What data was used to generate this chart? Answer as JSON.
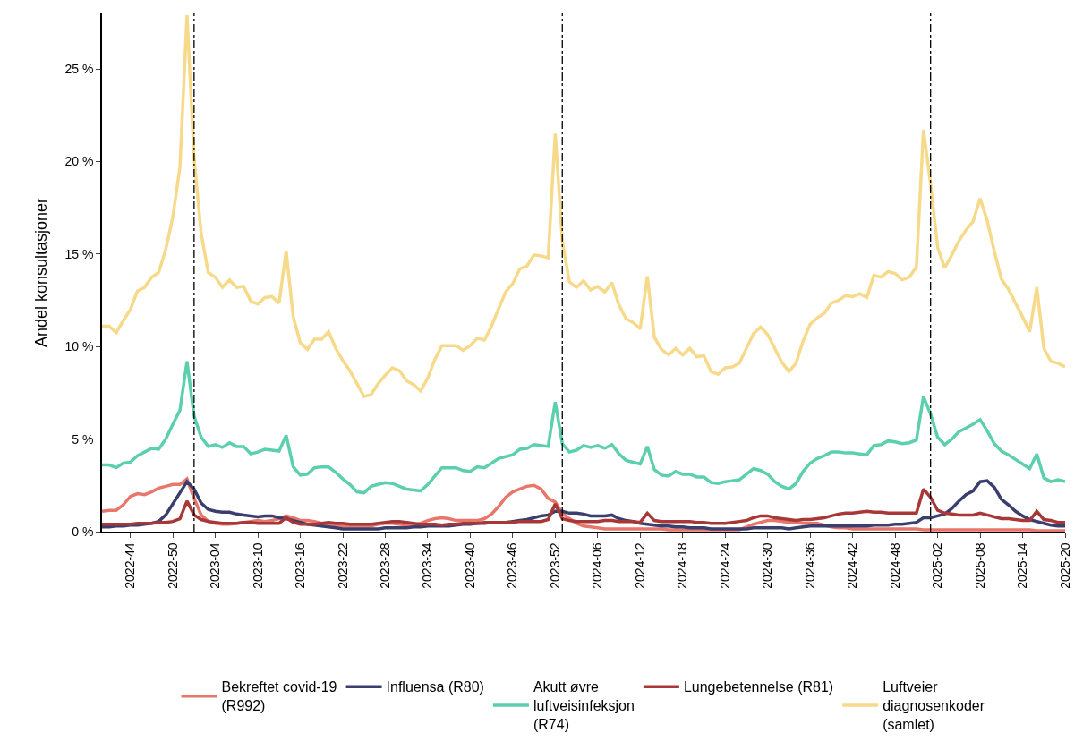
{
  "chart_data": {
    "type": "line",
    "ylabel": "Andel konsultasjoner",
    "x": [
      "2022-10-03",
      "2022-10-10",
      "2022-10-17",
      "2022-10-24",
      "2022-10-31",
      "2022-11-07",
      "2022-11-14",
      "2022-11-21",
      "2022-11-28",
      "2022-12-05",
      "2022-12-12",
      "2022-12-19",
      "2022-12-26",
      "2023-01-02",
      "2023-01-09",
      "2023-01-16",
      "2023-01-23",
      "2023-01-30",
      "2023-02-06",
      "2023-02-13",
      "2023-02-20",
      "2023-02-27",
      "2023-03-06",
      "2023-03-13",
      "2023-03-20",
      "2023-03-27",
      "2023-04-03",
      "2023-04-10",
      "2023-04-17",
      "2023-04-24",
      "2023-05-01",
      "2023-05-08",
      "2023-05-15",
      "2023-05-22",
      "2023-05-29",
      "2023-06-05",
      "2023-06-12",
      "2023-06-19",
      "2023-06-26",
      "2023-07-03",
      "2023-07-10",
      "2023-07-17",
      "2023-07-24",
      "2023-07-31",
      "2023-08-07",
      "2023-08-14",
      "2023-08-21",
      "2023-08-28",
      "2023-09-04",
      "2023-09-11",
      "2023-09-18",
      "2023-09-25",
      "2023-10-02",
      "2023-10-09",
      "2023-10-16",
      "2023-10-23",
      "2023-10-30",
      "2023-11-06",
      "2023-11-13",
      "2023-11-20",
      "2023-11-27",
      "2023-12-04",
      "2023-12-11",
      "2023-12-18",
      "2023-12-25",
      "2024-01-01",
      "2024-01-08",
      "2024-01-15",
      "2024-01-22",
      "2024-01-29",
      "2024-02-05",
      "2024-02-12",
      "2024-02-19",
      "2024-02-26",
      "2024-03-04",
      "2024-03-11",
      "2024-03-18",
      "2024-03-25",
      "2024-04-01",
      "2024-04-08",
      "2024-04-15",
      "2024-04-22",
      "2024-04-29",
      "2024-05-06",
      "2024-05-13",
      "2024-05-20",
      "2024-05-27",
      "2024-06-03",
      "2024-06-10",
      "2024-06-17",
      "2024-06-24",
      "2024-07-01",
      "2024-07-08",
      "2024-07-15",
      "2024-07-22",
      "2024-07-29",
      "2024-08-05",
      "2024-08-12",
      "2024-08-19",
      "2024-08-26",
      "2024-09-02",
      "2024-09-09",
      "2024-09-16",
      "2024-09-23",
      "2024-09-30",
      "2024-10-07",
      "2024-10-14",
      "2024-10-21",
      "2024-10-28",
      "2024-11-04",
      "2024-11-11",
      "2024-11-18",
      "2024-11-25",
      "2024-12-02",
      "2024-12-09",
      "2024-12-16",
      "2024-12-23",
      "2024-12-30",
      "2025-01-06",
      "2025-01-13",
      "2025-01-20",
      "2025-01-27",
      "2025-02-03",
      "2025-02-10",
      "2025-02-17",
      "2025-02-24",
      "2025-03-03",
      "2025-03-10",
      "2025-03-17",
      "2025-03-24",
      "2025-03-31",
      "2025-04-07",
      "2025-04-14",
      "2025-04-21",
      "2025-04-28",
      "2025-05-05",
      "2025-05-12"
    ],
    "xlim": [
      "2022-10-03",
      "2025-05-12"
    ],
    "xticks": [
      {
        "value": "2022-10-31",
        "label": "2022-44"
      },
      {
        "value": "2022-12-12",
        "label": "2022-50"
      },
      {
        "value": "2023-01-23",
        "label": "2023-04"
      },
      {
        "value": "2023-03-06",
        "label": "2023-10"
      },
      {
        "value": "2023-04-17",
        "label": "2023-16"
      },
      {
        "value": "2023-05-29",
        "label": "2023-22"
      },
      {
        "value": "2023-07-10",
        "label": "2023-28"
      },
      {
        "value": "2023-08-21",
        "label": "2023-34"
      },
      {
        "value": "2023-10-02",
        "label": "2023-40"
      },
      {
        "value": "2023-11-13",
        "label": "2023-46"
      },
      {
        "value": "2023-12-25",
        "label": "2023-52"
      },
      {
        "value": "2024-02-05",
        "label": "2024-06"
      },
      {
        "value": "2024-03-18",
        "label": "2024-12"
      },
      {
        "value": "2024-04-29",
        "label": "2024-18"
      },
      {
        "value": "2024-06-10",
        "label": "2024-24"
      },
      {
        "value": "2024-07-22",
        "label": "2024-30"
      },
      {
        "value": "2024-09-02",
        "label": "2024-36"
      },
      {
        "value": "2024-10-14",
        "label": "2024-42"
      },
      {
        "value": "2024-11-25",
        "label": "2024-48"
      },
      {
        "value": "2025-01-06",
        "label": "2025-02"
      },
      {
        "value": "2025-02-17",
        "label": "2025-08"
      },
      {
        "value": "2025-03-31",
        "label": "2025-14"
      },
      {
        "value": "2025-05-12",
        "label": "2025-20"
      }
    ],
    "ylim": [
      0,
      28
    ],
    "yticks": [
      {
        "value": 0,
        "label": "0 %"
      },
      {
        "value": 5,
        "label": "5 %"
      },
      {
        "value": 10,
        "label": "10 %"
      },
      {
        "value": 15,
        "label": "15 %"
      },
      {
        "value": 20,
        "label": "20 %"
      },
      {
        "value": 25,
        "label": "25 %"
      }
    ],
    "legend": "bottom",
    "line_style": "solid",
    "ref_lines": [
      {
        "axis": "x",
        "value": "2023-01-02",
        "color": "#000000",
        "line_style": "dashdot"
      },
      {
        "axis": "x",
        "value": "2024-01-01",
        "color": "#000000",
        "line_style": "dashdot"
      },
      {
        "axis": "x",
        "value": "2024-12-30",
        "color": "#000000",
        "line_style": "dashdot"
      }
    ],
    "series": [
      {
        "name": "Bekreftet covid-19 (R992)",
        "color": "#e8776b",
        "values": [
          1.1,
          1.15,
          1.15,
          1.45,
          1.9,
          2.05,
          2.0,
          2.15,
          2.35,
          2.45,
          2.55,
          2.55,
          2.85,
          1.8,
          0.9,
          0.55,
          0.45,
          0.4,
          0.4,
          0.45,
          0.5,
          0.55,
          0.6,
          0.55,
          0.6,
          0.7,
          0.85,
          0.75,
          0.6,
          0.6,
          0.55,
          0.45,
          0.4,
          0.35,
          0.3,
          0.3,
          0.3,
          0.3,
          0.3,
          0.4,
          0.45,
          0.45,
          0.4,
          0.35,
          0.35,
          0.45,
          0.6,
          0.7,
          0.75,
          0.7,
          0.6,
          0.6,
          0.6,
          0.6,
          0.7,
          0.95,
          1.35,
          1.85,
          2.15,
          2.3,
          2.45,
          2.5,
          2.3,
          1.8,
          1.6,
          1.0,
          0.7,
          0.45,
          0.3,
          0.25,
          0.2,
          0.15,
          0.15,
          0.15,
          0.15,
          0.15,
          0.15,
          0.15,
          0.15,
          0.15,
          0.1,
          0.1,
          0.1,
          0.1,
          0.1,
          0.1,
          0.1,
          0.1,
          0.1,
          0.1,
          0.1,
          0.25,
          0.4,
          0.5,
          0.6,
          0.6,
          0.55,
          0.5,
          0.5,
          0.45,
          0.45,
          0.45,
          0.35,
          0.25,
          0.2,
          0.2,
          0.15,
          0.15,
          0.15,
          0.15,
          0.15,
          0.15,
          0.15,
          0.15,
          0.15,
          0.15,
          0.1,
          0.1,
          0.1,
          0.1,
          0.1,
          0.1,
          0.1,
          0.1,
          0.1,
          0.1,
          0.1,
          0.1,
          0.1,
          0.1,
          0.1,
          0.1,
          0.05,
          0.05,
          0.05,
          0.05,
          0.05
        ]
      },
      {
        "name": "Influensa (R80)",
        "color": "#3b3f6e",
        "values": [
          0.25,
          0.25,
          0.3,
          0.3,
          0.35,
          0.35,
          0.4,
          0.45,
          0.55,
          0.9,
          1.5,
          2.1,
          2.7,
          2.3,
          1.55,
          1.2,
          1.1,
          1.05,
          1.05,
          0.95,
          0.9,
          0.85,
          0.8,
          0.85,
          0.85,
          0.75,
          0.7,
          0.6,
          0.5,
          0.4,
          0.35,
          0.3,
          0.25,
          0.2,
          0.15,
          0.15,
          0.15,
          0.15,
          0.15,
          0.15,
          0.2,
          0.2,
          0.2,
          0.2,
          0.25,
          0.25,
          0.3,
          0.3,
          0.3,
          0.3,
          0.35,
          0.4,
          0.4,
          0.45,
          0.45,
          0.5,
          0.5,
          0.5,
          0.55,
          0.6,
          0.65,
          0.75,
          0.85,
          0.9,
          1.1,
          1.1,
          1.0,
          1.0,
          0.95,
          0.85,
          0.85,
          0.85,
          0.9,
          0.7,
          0.6,
          0.55,
          0.45,
          0.4,
          0.35,
          0.3,
          0.3,
          0.25,
          0.25,
          0.2,
          0.2,
          0.2,
          0.15,
          0.15,
          0.15,
          0.15,
          0.15,
          0.15,
          0.2,
          0.2,
          0.2,
          0.2,
          0.2,
          0.15,
          0.2,
          0.25,
          0.3,
          0.3,
          0.3,
          0.3,
          0.3,
          0.3,
          0.3,
          0.3,
          0.3,
          0.35,
          0.35,
          0.35,
          0.4,
          0.4,
          0.45,
          0.5,
          0.75,
          0.75,
          0.85,
          0.95,
          1.25,
          1.65,
          2.0,
          2.2,
          2.7,
          2.75,
          2.4,
          1.75,
          1.45,
          1.1,
          0.85,
          0.65,
          0.55,
          0.45,
          0.35,
          0.3,
          0.3
        ]
      },
      {
        "name": "Akutt øvre luftveisinfeksjon (R74)",
        "color": "#5ccfae",
        "values": [
          3.6,
          3.6,
          3.45,
          3.7,
          3.75,
          4.1,
          4.3,
          4.5,
          4.45,
          5.0,
          5.8,
          6.55,
          9.2,
          6.25,
          5.1,
          4.6,
          4.7,
          4.55,
          4.8,
          4.6,
          4.6,
          4.2,
          4.3,
          4.45,
          4.4,
          4.35,
          5.2,
          3.5,
          3.05,
          3.1,
          3.45,
          3.5,
          3.5,
          3.2,
          2.85,
          2.55,
          2.15,
          2.1,
          2.45,
          2.55,
          2.65,
          2.6,
          2.45,
          2.3,
          2.25,
          2.2,
          2.55,
          3.0,
          3.45,
          3.45,
          3.45,
          3.3,
          3.25,
          3.5,
          3.45,
          3.7,
          3.95,
          4.05,
          4.15,
          4.45,
          4.5,
          4.7,
          4.65,
          4.6,
          7.0,
          4.75,
          4.3,
          4.4,
          4.65,
          4.55,
          4.65,
          4.5,
          4.7,
          4.2,
          3.85,
          3.75,
          3.65,
          4.6,
          3.35,
          3.05,
          3.0,
          3.25,
          3.1,
          3.1,
          2.95,
          2.95,
          2.65,
          2.6,
          2.7,
          2.75,
          2.8,
          3.1,
          3.4,
          3.3,
          3.1,
          2.7,
          2.45,
          2.3,
          2.6,
          3.25,
          3.7,
          3.95,
          4.1,
          4.3,
          4.3,
          4.25,
          4.25,
          4.2,
          4.15,
          4.65,
          4.7,
          4.9,
          4.85,
          4.75,
          4.8,
          4.95,
          7.3,
          6.35,
          5.1,
          4.7,
          5.0,
          5.4,
          5.6,
          5.8,
          6.05,
          5.45,
          4.75,
          4.35,
          4.15,
          3.9,
          3.65,
          3.4,
          4.2,
          2.9,
          2.7,
          2.8,
          2.7
        ]
      },
      {
        "name": "Lungebetennelse (R81)",
        "color": "#a83838",
        "values": [
          0.4,
          0.4,
          0.4,
          0.4,
          0.4,
          0.45,
          0.45,
          0.45,
          0.5,
          0.5,
          0.55,
          0.7,
          1.65,
          0.9,
          0.65,
          0.55,
          0.5,
          0.45,
          0.45,
          0.45,
          0.5,
          0.5,
          0.45,
          0.45,
          0.45,
          0.45,
          0.75,
          0.5,
          0.4,
          0.4,
          0.4,
          0.45,
          0.5,
          0.45,
          0.45,
          0.4,
          0.4,
          0.4,
          0.4,
          0.45,
          0.5,
          0.55,
          0.55,
          0.5,
          0.45,
          0.4,
          0.4,
          0.4,
          0.35,
          0.4,
          0.4,
          0.45,
          0.45,
          0.45,
          0.5,
          0.5,
          0.5,
          0.5,
          0.5,
          0.55,
          0.55,
          0.55,
          0.55,
          0.65,
          1.5,
          0.7,
          0.6,
          0.55,
          0.55,
          0.55,
          0.55,
          0.6,
          0.6,
          0.55,
          0.55,
          0.55,
          0.5,
          1.0,
          0.6,
          0.55,
          0.55,
          0.55,
          0.55,
          0.55,
          0.5,
          0.5,
          0.45,
          0.45,
          0.45,
          0.5,
          0.55,
          0.6,
          0.75,
          0.85,
          0.85,
          0.75,
          0.7,
          0.65,
          0.6,
          0.65,
          0.65,
          0.7,
          0.75,
          0.85,
          0.95,
          1.0,
          1.0,
          1.05,
          1.1,
          1.05,
          1.05,
          1.0,
          1.0,
          1.0,
          1.0,
          1.0,
          2.3,
          1.85,
          1.15,
          1.0,
          0.95,
          0.9,
          0.9,
          0.9,
          1.0,
          0.9,
          0.8,
          0.7,
          0.7,
          0.65,
          0.6,
          0.6,
          1.1,
          0.65,
          0.6,
          0.5,
          0.5
        ]
      },
      {
        "name": "Luftveier diagnosenkoder (samlet)",
        "color": "#f7d98a",
        "values": [
          11.1,
          11.1,
          10.75,
          11.4,
          12.0,
          13.0,
          13.2,
          13.75,
          14.0,
          15.25,
          17.0,
          19.7,
          27.9,
          20.2,
          16.1,
          14.0,
          13.75,
          13.2,
          13.6,
          13.2,
          13.25,
          12.45,
          12.3,
          12.65,
          12.7,
          12.35,
          15.15,
          11.6,
          10.2,
          9.85,
          10.4,
          10.4,
          10.8,
          9.9,
          9.25,
          8.7,
          8.0,
          7.3,
          7.4,
          8.0,
          8.45,
          8.85,
          8.7,
          8.15,
          7.95,
          7.6,
          8.3,
          9.3,
          10.05,
          10.05,
          10.05,
          9.8,
          10.05,
          10.45,
          10.35,
          11.1,
          12.05,
          12.95,
          13.4,
          14.2,
          14.35,
          14.95,
          14.9,
          14.8,
          21.5,
          15.7,
          13.5,
          13.2,
          13.55,
          13.05,
          13.25,
          12.95,
          13.45,
          12.25,
          11.5,
          11.3,
          10.95,
          13.8,
          10.5,
          9.85,
          9.55,
          9.9,
          9.55,
          9.9,
          9.45,
          9.5,
          8.65,
          8.5,
          8.85,
          8.9,
          9.1,
          9.9,
          10.7,
          11.05,
          10.65,
          9.9,
          9.15,
          8.65,
          9.1,
          10.3,
          11.2,
          11.55,
          11.8,
          12.35,
          12.5,
          12.75,
          12.7,
          12.85,
          12.65,
          13.85,
          13.75,
          14.05,
          13.95,
          13.6,
          13.75,
          14.3,
          21.7,
          18.8,
          15.35,
          14.25,
          14.95,
          15.7,
          16.3,
          16.75,
          18.0,
          16.8,
          15.15,
          13.65,
          13.1,
          12.35,
          11.6,
          10.8,
          13.2,
          9.9,
          9.2,
          9.1,
          8.9
        ]
      }
    ]
  }
}
